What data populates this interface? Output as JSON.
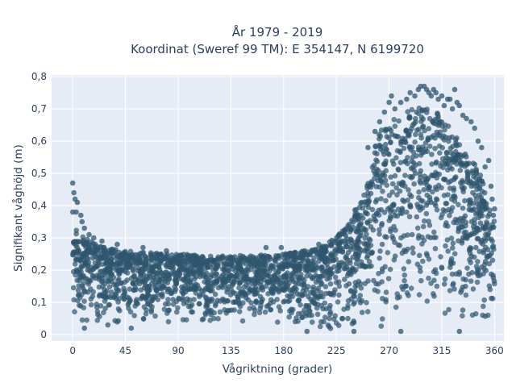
{
  "chart_data": {
    "type": "scatter",
    "title": "År 1979 - 2019",
    "subtitle": "Koordinat (Sweref 99 TM): E 354147, N 6199720",
    "xlabel": "Vågriktning (grader)",
    "ylabel": "Signifikant våghöjd (m)",
    "xlim": [
      -18,
      368
    ],
    "ylim": [
      -0.02,
      0.805
    ],
    "grid": true,
    "legend": "none",
    "x_ticks": [
      0,
      45,
      90,
      135,
      180,
      225,
      270,
      315,
      360
    ],
    "x_tick_labels": [
      "0",
      "45",
      "90",
      "135",
      "180",
      "225",
      "270",
      "315",
      "360"
    ],
    "y_ticks": [
      0,
      0.1,
      0.2,
      0.3,
      0.4,
      0.5,
      0.6,
      0.7,
      0.8
    ],
    "y_tick_labels": [
      "0",
      "0,1",
      "0,2",
      "0,3",
      "0,4",
      "0,5",
      "0,6",
      "0,7",
      "0,8"
    ],
    "colors": {
      "marker": "#2f566d",
      "plot_background": "#e5ecf6",
      "grid": "#ffffff",
      "text": "#2a3f5f"
    },
    "envelope": {
      "x": [
        0,
        5,
        10,
        15,
        20,
        30,
        45,
        60,
        90,
        120,
        150,
        180,
        200,
        210,
        220,
        230,
        240,
        250,
        255,
        260,
        270,
        280,
        290,
        300,
        310,
        315,
        320,
        330,
        340,
        345,
        350,
        355,
        360
      ],
      "y_min": [
        0.03,
        0.03,
        0.03,
        0.03,
        0.03,
        0.03,
        0.03,
        0.03,
        0.03,
        0.03,
        0.03,
        0.03,
        0.02,
        0.01,
        0.01,
        0.01,
        0.01,
        0.01,
        0.01,
        0.01,
        0.01,
        0.01,
        0.01,
        0.01,
        0.01,
        0.01,
        0.01,
        0.01,
        0.02,
        0.03,
        0.03,
        0.03,
        0.03
      ],
      "y_max": [
        0.35,
        0.32,
        0.3,
        0.29,
        0.28,
        0.27,
        0.26,
        0.255,
        0.25,
        0.245,
        0.245,
        0.25,
        0.26,
        0.27,
        0.29,
        0.32,
        0.38,
        0.45,
        0.52,
        0.62,
        0.66,
        0.68,
        0.7,
        0.71,
        0.69,
        0.68,
        0.65,
        0.6,
        0.55,
        0.52,
        0.48,
        0.4,
        0.36
      ]
    },
    "outliers": [
      {
        "x": 0,
        "y": 0.47
      },
      {
        "x": 1,
        "y": 0.44
      },
      {
        "x": 2,
        "y": 0.42
      },
      {
        "x": 4,
        "y": 0.41
      },
      {
        "x": 0,
        "y": 0.38
      },
      {
        "x": 3,
        "y": 0.38
      },
      {
        "x": 7,
        "y": 0.37
      },
      {
        "x": 8,
        "y": 0.35
      },
      {
        "x": 10,
        "y": 0.33
      },
      {
        "x": 14,
        "y": 0.31
      },
      {
        "x": 18,
        "y": 0.3
      },
      {
        "x": 25,
        "y": 0.29
      },
      {
        "x": 38,
        "y": 0.28
      },
      {
        "x": 60,
        "y": 0.27
      },
      {
        "x": 80,
        "y": 0.26
      },
      {
        "x": 165,
        "y": 0.27
      },
      {
        "x": 178,
        "y": 0.27
      },
      {
        "x": 198,
        "y": 0.26
      },
      {
        "x": 210,
        "y": 0.28
      },
      {
        "x": 228,
        "y": 0.31
      },
      {
        "x": 252,
        "y": 0.58
      },
      {
        "x": 258,
        "y": 0.63
      },
      {
        "x": 262,
        "y": 0.66
      },
      {
        "x": 266,
        "y": 0.69
      },
      {
        "x": 270,
        "y": 0.72
      },
      {
        "x": 272,
        "y": 0.74
      },
      {
        "x": 275,
        "y": 0.7
      },
      {
        "x": 280,
        "y": 0.72
      },
      {
        "x": 285,
        "y": 0.73
      },
      {
        "x": 288,
        "y": 0.75
      },
      {
        "x": 292,
        "y": 0.74
      },
      {
        "x": 295,
        "y": 0.76
      },
      {
        "x": 297,
        "y": 0.77
      },
      {
        "x": 300,
        "y": 0.77
      },
      {
        "x": 302,
        "y": 0.76
      },
      {
        "x": 304,
        "y": 0.75
      },
      {
        "x": 306,
        "y": 0.74
      },
      {
        "x": 308,
        "y": 0.76
      },
      {
        "x": 310,
        "y": 0.75
      },
      {
        "x": 312,
        "y": 0.73
      },
      {
        "x": 315,
        "y": 0.74
      },
      {
        "x": 317,
        "y": 0.71
      },
      {
        "x": 320,
        "y": 0.73
      },
      {
        "x": 322,
        "y": 0.73
      },
      {
        "x": 324,
        "y": 0.7
      },
      {
        "x": 326,
        "y": 0.76
      },
      {
        "x": 328,
        "y": 0.72
      },
      {
        "x": 330,
        "y": 0.71
      },
      {
        "x": 333,
        "y": 0.68
      },
      {
        "x": 336,
        "y": 0.67
      },
      {
        "x": 340,
        "y": 0.66
      },
      {
        "x": 343,
        "y": 0.64
      },
      {
        "x": 346,
        "y": 0.6
      },
      {
        "x": 349,
        "y": 0.58
      },
      {
        "x": 352,
        "y": 0.52
      },
      {
        "x": 355,
        "y": 0.54
      },
      {
        "x": 357,
        "y": 0.46
      },
      {
        "x": 358,
        "y": 0.42
      },
      {
        "x": 360,
        "y": 0.39
      },
      {
        "x": 359,
        "y": 0.37
      },
      {
        "x": 10,
        "y": 0.02
      },
      {
        "x": 30,
        "y": 0.03
      },
      {
        "x": 50,
        "y": 0.02
      },
      {
        "x": 200,
        "y": 0.01
      },
      {
        "x": 240,
        "y": 0.01
      },
      {
        "x": 280,
        "y": 0.01
      },
      {
        "x": 330,
        "y": 0.01
      }
    ]
  }
}
